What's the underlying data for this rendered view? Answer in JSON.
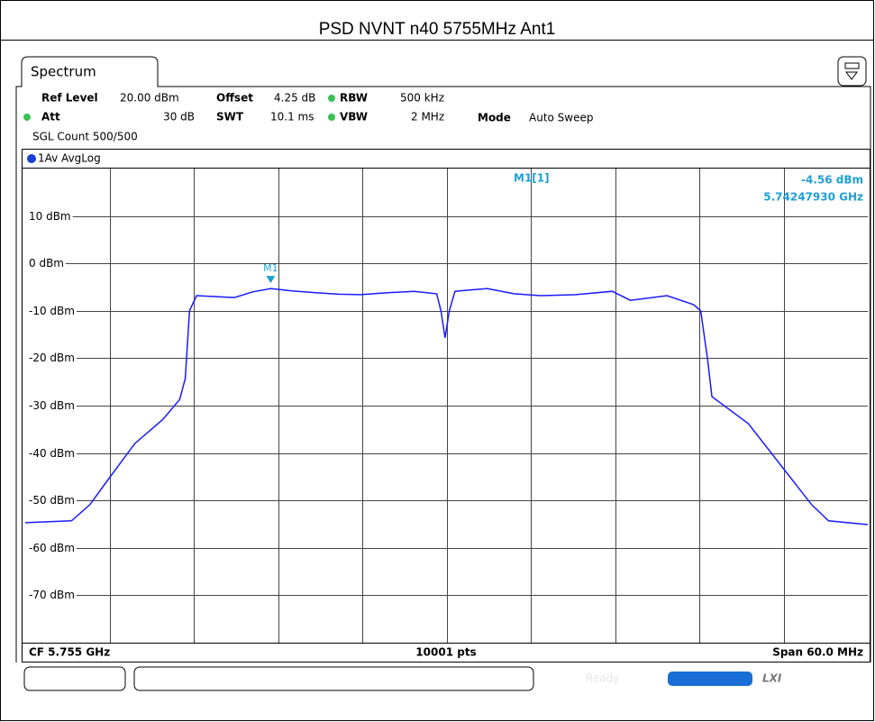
{
  "title": "PSD NVNT n40 5755MHz Ant1",
  "ui": {
    "tab": "Spectrum",
    "ref_level_label": "Ref Level",
    "ref_level": "20.00 dBm",
    "offset_label": "Offset",
    "offset": "4.25 dB",
    "rbw_label": "RBW",
    "rbw": "500 kHz",
    "att_label": "Att",
    "att": "30 dB",
    "swt_label": "SWT",
    "swt": "10.1 ms",
    "vbw_label": "VBW",
    "vbw": "2 MHz",
    "mode_label": "Mode",
    "mode": "Auto Sweep",
    "count": "SGL Count 500/500",
    "center": "CF 5.755 GHz",
    "points": "10001 pts",
    "span": "Span 60.0 MHz",
    "status": "Ready",
    "lxi": "LXI"
  },
  "chart_data": {
    "type": "line",
    "x": [
      5725,
      5728.3,
      5729.6,
      5731.0,
      5732.8,
      5734.8,
      5736.0,
      5736.4,
      5736.7,
      5737.2,
      5738.5,
      5739.9,
      5741.2,
      5742.5,
      5744.0,
      5745.7,
      5747.3,
      5748.9,
      5750.8,
      5752.7,
      5754.3,
      5754.6,
      5754.9,
      5755.2,
      5755.6,
      5757.9,
      5759.8,
      5761.7,
      5764.2,
      5766.8,
      5768.1,
      5770.7,
      5772.6,
      5773.1,
      5773.6,
      5773.9,
      5776.5,
      5779.0,
      5781.0,
      5782.2,
      5785
    ],
    "series": [
      {
        "name": "1Av AvgLog",
        "color": "#1a1aff",
        "values": [
          -54.7,
          -54.3,
          -50.9,
          -45.2,
          -38.0,
          -32.9,
          -28.7,
          -24.3,
          -10.0,
          -6.8,
          -7.0,
          -7.2,
          -6.0,
          -5.3,
          -5.8,
          -6.2,
          -6.5,
          -6.6,
          -6.2,
          -5.9,
          -6.4,
          -10.0,
          -15.7,
          -10.0,
          -5.9,
          -5.3,
          -6.4,
          -6.8,
          -6.6,
          -5.9,
          -7.8,
          -6.8,
          -8.7,
          -10.0,
          -20.5,
          -28.1,
          -33.8,
          -43.3,
          -50.9,
          -54.3,
          -55.1
        ]
      }
    ],
    "xlim": [
      5725,
      5785
    ],
    "xticks": [
      5731,
      5737,
      5743,
      5749,
      5755,
      5761,
      5767,
      5773,
      5779
    ],
    "ylim": [
      -80,
      20
    ],
    "yticks": [
      {
        "value": -70,
        "label": "-70 dBm"
      },
      {
        "value": -60,
        "label": "-60 dBm"
      },
      {
        "value": -50,
        "label": "-50 dBm"
      },
      {
        "value": -40,
        "label": "-40 dBm"
      },
      {
        "value": -30,
        "label": "-30 dBm"
      },
      {
        "value": -20,
        "label": "-20 dBm"
      },
      {
        "value": -10,
        "label": "-10 dBm"
      },
      {
        "value": 0,
        "label": "0 dBm"
      },
      {
        "value": 10,
        "label": "10 dBm"
      }
    ],
    "grid": true,
    "marker": {
      "label": "M1",
      "readout": "M1[1]",
      "x": 5742.4793,
      "x_label": "5.74247930 GHz",
      "y": -4.56,
      "y_label": "-4.56 dBm",
      "color": "#1e9fd6"
    }
  }
}
